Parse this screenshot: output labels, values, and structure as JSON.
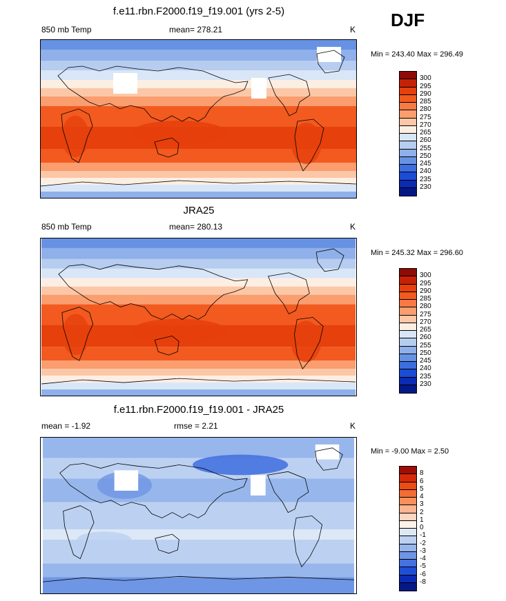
{
  "header": {
    "season": "DJF"
  },
  "panels": [
    {
      "title": "f.e11.rbn.F2000.f19_f19.001 (yrs 2-5)",
      "left_label": "850 mb Temp",
      "center_label": "mean= 278.21",
      "units": "K",
      "minmax": "Min = 243.40 Max = 296.49",
      "colorbar_labels": [
        "300",
        "295",
        "290",
        "285",
        "280",
        "275",
        "270",
        "265",
        "260",
        "255",
        "250",
        "245",
        "240",
        "235",
        "230"
      ],
      "colorbar_colors": [
        "#8e0b07",
        "#c42207",
        "#e6400c",
        "#f25a1f",
        "#f77a45",
        "#fa9d6f",
        "#fcc7a6",
        "#fdeee3",
        "#d9e6f7",
        "#b6cdf0",
        "#8fb0ea",
        "#6792e3",
        "#3d6ee0",
        "#1a4cd6",
        "#0b2bb3",
        "#051888"
      ],
      "map_variant": "model"
    },
    {
      "title": "JRA25",
      "left_label": "850 mb Temp",
      "center_label": "mean= 280.13",
      "units": "K",
      "minmax": "Min = 245.32 Max = 296.60",
      "colorbar_labels": [
        "300",
        "295",
        "290",
        "285",
        "280",
        "275",
        "270",
        "265",
        "260",
        "255",
        "250",
        "245",
        "240",
        "235",
        "230"
      ],
      "colorbar_colors": [
        "#8e0b07",
        "#c42207",
        "#e6400c",
        "#f25a1f",
        "#f77a45",
        "#fa9d6f",
        "#fcc7a6",
        "#fdeee3",
        "#d9e6f7",
        "#b6cdf0",
        "#8fb0ea",
        "#6792e3",
        "#3d6ee0",
        "#1a4cd6",
        "#0b2bb3",
        "#051888"
      ],
      "map_variant": "obs"
    },
    {
      "title": "f.e11.rbn.F2000.f19_f19.001 - JRA25",
      "left_label": "mean =  -1.92",
      "center_label": "rmse =   2.21",
      "units": "K",
      "minmax": "Min =  -9.00 Max =   2.50",
      "colorbar_labels": [
        "8",
        "6",
        "5",
        "4",
        "3",
        "2",
        "1",
        "0",
        "-1",
        "-2",
        "-3",
        "-4",
        "-5",
        "-6",
        "-8"
      ],
      "colorbar_colors": [
        "#a00d08",
        "#d42a0a",
        "#ec4b14",
        "#f46c32",
        "#f9905c",
        "#fbb48f",
        "#fdd5c0",
        "#fdf2ea",
        "#dde8f7",
        "#bcd1f1",
        "#97b6eb",
        "#6f96e4",
        "#4572e0",
        "#1f4fd6",
        "#0c2cb3",
        "#051888"
      ],
      "map_variant": "diff"
    }
  ]
}
